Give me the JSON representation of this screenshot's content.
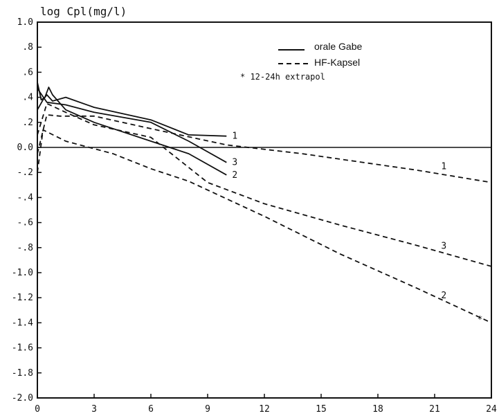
{
  "chart_data": {
    "type": "line",
    "ylabel": "log Cpl(mg/l)",
    "xlim": [
      0,
      24
    ],
    "ylim": [
      -2.0,
      1.0
    ],
    "x_ticks": [
      0,
      3,
      6,
      9,
      12,
      15,
      18,
      21,
      24
    ],
    "x_tick_labels": [
      "0",
      "3",
      "6",
      "9",
      "12",
      "15",
      "18",
      "21",
      "24"
    ],
    "y_ticks": [
      1.0,
      0.8,
      0.6,
      0.4,
      0.2,
      0.0,
      -0.2,
      -0.4,
      -0.6,
      -0.8,
      -1.0,
      -1.2,
      -1.4,
      -1.6,
      -1.8,
      -2.0
    ],
    "y_tick_labels": [
      "1.0",
      ".8",
      ".6",
      ".4",
      ".2",
      "0.0",
      "-.2",
      "-.4",
      "-.6",
      "-.8",
      "-1.0",
      "-1.2",
      "-1.4",
      "-1.6",
      "-1.8",
      "-2.0"
    ],
    "grid": false,
    "reference_line_y": 0.0,
    "legend": {
      "placement": "top-right",
      "entries": [
        {
          "text": "orale Gabe",
          "style": "solid"
        },
        {
          "text": "HF-Kapsel",
          "style": "dashed"
        }
      ],
      "note": "* 12-24h extrapol"
    },
    "series": [
      {
        "label": "1",
        "style": "solid",
        "x": [
          0,
          0.3,
          0.5,
          0.8,
          1.5,
          3,
          6,
          8,
          10
        ],
        "y": [
          0.3,
          0.38,
          0.42,
          0.37,
          0.4,
          0.32,
          0.22,
          0.1,
          0.09
        ]
      },
      {
        "label": "3",
        "style": "solid",
        "x": [
          0,
          0.5,
          1.5,
          3,
          6,
          8,
          10
        ],
        "y": [
          0.47,
          0.36,
          0.34,
          0.28,
          0.2,
          0.05,
          -0.12
        ]
      },
      {
        "label": "2",
        "style": "solid",
        "x": [
          0,
          0.2,
          0.4,
          0.6,
          0.8,
          1.5,
          3,
          6,
          8,
          10
        ],
        "y": [
          0.52,
          0.38,
          0.4,
          0.48,
          0.42,
          0.3,
          0.2,
          0.05,
          -0.05,
          -0.22
        ]
      },
      {
        "label": "1",
        "style": "dashed",
        "x": [
          0,
          0.5,
          1.2,
          3,
          6,
          10,
          14,
          20,
          24
        ],
        "y": [
          -0.05,
          0.26,
          0.25,
          0.25,
          0.15,
          0.02,
          -0.05,
          -0.18,
          -0.28
        ]
      },
      {
        "label": "3",
        "style": "dashed",
        "x": [
          0,
          0.5,
          1.5,
          3,
          6,
          9,
          12,
          16,
          20,
          24
        ],
        "y": [
          0.1,
          0.35,
          0.28,
          0.18,
          0.08,
          -0.28,
          -0.45,
          -0.62,
          -0.78,
          -0.95
        ]
      },
      {
        "label": "2",
        "style": "dashed",
        "x": [
          0,
          0.3,
          1.5,
          4,
          6,
          8,
          12,
          16,
          20,
          24
        ],
        "y": [
          -0.2,
          0.14,
          0.05,
          -0.05,
          -0.17,
          -0.27,
          -0.55,
          -0.85,
          -1.12,
          -1.4
        ]
      }
    ],
    "annotations": [
      {
        "text": "*",
        "x": 23.4,
        "y": -1.37
      }
    ]
  }
}
